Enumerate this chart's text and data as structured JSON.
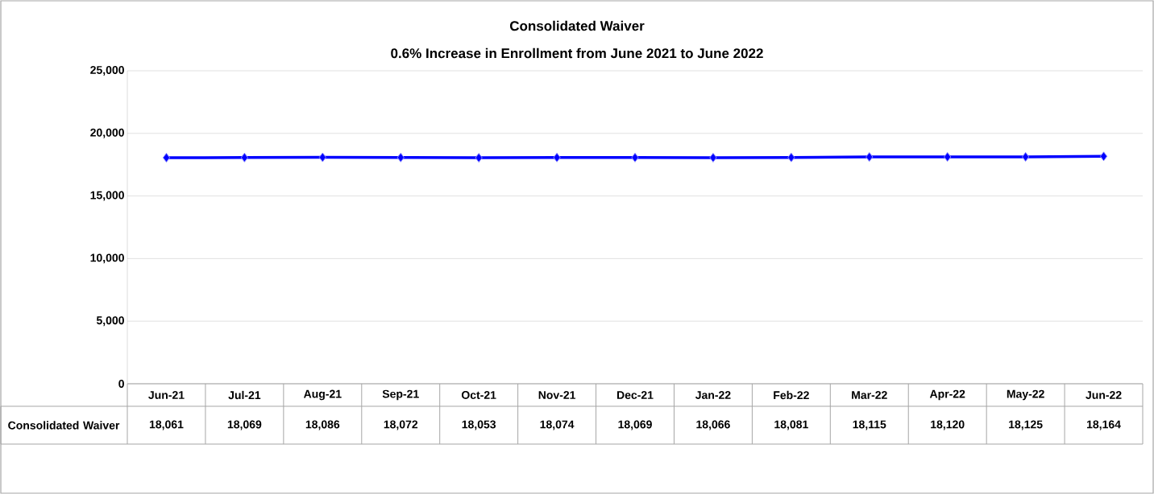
{
  "chart_data": {
    "type": "line",
    "title": "Consolidated Waiver",
    "subtitle": "0.6% Increase in Enrollment from June 2021 to June 2022",
    "categories": [
      "Jun-21",
      "Jul-21",
      "Aug-21",
      "Sep-21",
      "Oct-21",
      "Nov-21",
      "Dec-21",
      "Jan-22",
      "Feb-22",
      "Mar-22",
      "Apr-22",
      "May-22",
      "Jun-22"
    ],
    "series": [
      {
        "name": "Consolidated Waiver",
        "color": "#0000ff",
        "values": [
          18061,
          18069,
          18086,
          18072,
          18053,
          18074,
          18069,
          18066,
          18081,
          18115,
          18120,
          18125,
          18164
        ],
        "value_labels": [
          "18,061",
          "18,069",
          "18,086",
          "18,072",
          "18,053",
          "18,074",
          "18,069",
          "18,066",
          "18,081",
          "18,115",
          "18,120",
          "18,125",
          "18,164"
        ]
      }
    ],
    "ylim": [
      0,
      25000
    ],
    "yticks": [
      0,
      {
        "value": 5000,
        "label": "5,000"
      },
      {
        "value": 10000,
        "label": "10,000"
      },
      {
        "value": 15000,
        "label": "15,000"
      },
      {
        "value": 20000,
        "label": "20,000"
      },
      {
        "value": 25000,
        "label": "25,000"
      }
    ],
    "grid": "y",
    "marker": "diamond",
    "line_style": "solid"
  }
}
